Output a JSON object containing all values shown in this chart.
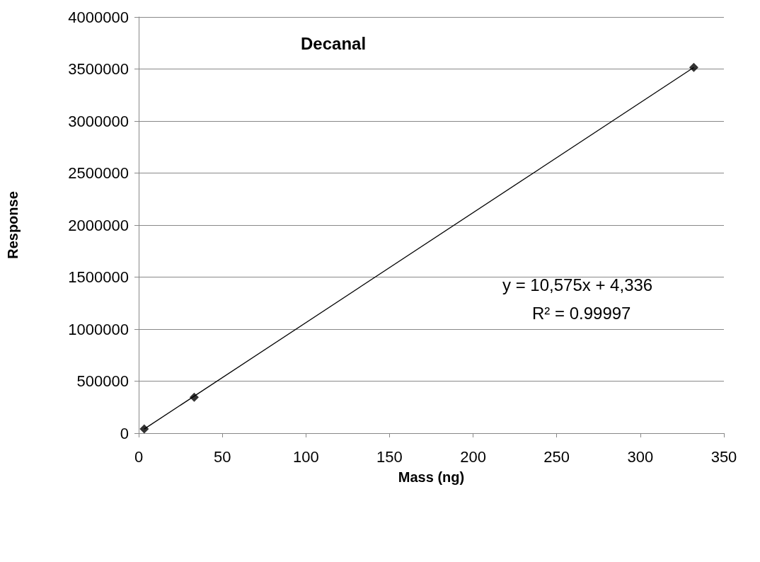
{
  "chart_data": {
    "type": "scatter",
    "title": "Decanal",
    "xlabel": "Mass (ng)",
    "ylabel": "Response",
    "series": [
      {
        "color": "#000000",
        "marker": "diamond",
        "x": [
          3.3,
          33.2,
          332
        ],
        "values": [
          40000,
          345000,
          3515000
        ]
      },
      {
        "type": "line",
        "color": "#000000",
        "marker": "none",
        "x": [
          3.3,
          332
        ],
        "values": [
          40000,
          3515000
        ]
      }
    ],
    "xlim": [
      0,
      350
    ],
    "xticks": [
      0,
      50,
      100,
      150,
      200,
      250,
      300,
      350
    ],
    "ylim": [
      0,
      4000000
    ],
    "yticks": [
      0,
      500000,
      1000000,
      1500000,
      2000000,
      2500000,
      3000000,
      3500000,
      4000000
    ],
    "grid": "y",
    "annotations": [
      "y = 10,575x + 4,336",
      "R² = 0.99997"
    ]
  }
}
